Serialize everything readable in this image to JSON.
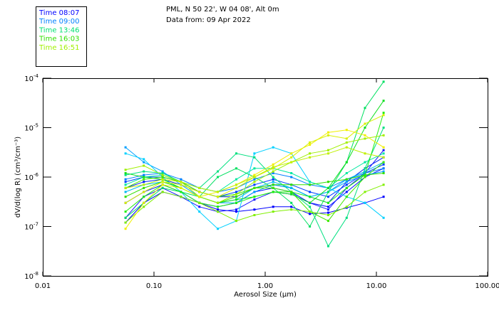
{
  "chart_data": {
    "type": "line",
    "title": "PML, N 50 22', W 04 08', Alt 0m",
    "subtitle": "Data from: 09 Apr 2022",
    "xlabel": "Aerosol Size (µm)",
    "ylabel": "dV/d(log R) (cm³/cm⁻³)",
    "xscale": "log",
    "yscale": "log",
    "xlim": [
      0.01,
      100
    ],
    "ylim": [
      1e-08,
      0.0001
    ],
    "xticks": [
      {
        "v": 0.01,
        "label": "0.01"
      },
      {
        "v": 0.1,
        "label": "0.10"
      },
      {
        "v": 1,
        "label": "1.00"
      },
      {
        "v": 10,
        "label": "10.00"
      },
      {
        "v": 100,
        "label": "100.00"
      }
    ],
    "yticks": [
      {
        "v": 0.0001,
        "base": "10",
        "exp": "-4"
      },
      {
        "v": 1e-05,
        "base": "10",
        "exp": "-5"
      },
      {
        "v": 1e-06,
        "base": "10",
        "exp": "-6"
      },
      {
        "v": 1e-07,
        "base": "10",
        "exp": "-7"
      },
      {
        "v": 1e-08,
        "base": "10",
        "exp": "-8"
      }
    ],
    "grid": false,
    "legend_position": "top-left",
    "legend": [
      {
        "label": "Time 08:07",
        "color": "#0000ff"
      },
      {
        "label": "Time 09:00",
        "color": "#0080ff"
      },
      {
        "label": "Time 13:46",
        "color": "#00e070"
      },
      {
        "label": "Time 16:03",
        "color": "#30e000"
      },
      {
        "label": "Time 16:51",
        "color": "#a0f000"
      }
    ],
    "x": [
      0.0555,
      0.081,
      0.1196,
      0.175,
      0.256,
      0.375,
      0.55,
      0.8,
      1.18,
      1.72,
      2.52,
      3.69,
      5.4,
      7.9,
      11.6
    ],
    "series": [
      {
        "name": "s1",
        "color": "#0000ff",
        "values": [
          1.2e-07,
          3e-07,
          5e-07,
          4e-07,
          3e-07,
          2.2e-07,
          2e-07,
          2.2e-07,
          2.5e-07,
          2.5e-07,
          1.8e-07,
          1.9e-07,
          2.4e-07,
          3e-07,
          4e-07
        ]
      },
      {
        "name": "s2",
        "color": "#0010ff",
        "values": [
          3e-07,
          5e-07,
          7e-07,
          5e-07,
          3e-07,
          2.5e-07,
          3e-07,
          5e-07,
          6e-07,
          5e-07,
          3e-07,
          2.5e-07,
          5e-07,
          1e-06,
          1.5e-06
        ]
      },
      {
        "name": "s3",
        "color": "#0020f0",
        "values": [
          6e-07,
          8e-07,
          9e-07,
          7e-07,
          5e-07,
          4e-07,
          4e-07,
          6e-07,
          7e-07,
          6e-07,
          4e-07,
          3e-07,
          8e-07,
          1.5e-06,
          2.5e-06
        ]
      },
      {
        "name": "s4",
        "color": "#1818ff",
        "values": [
          1.5e-07,
          4e-07,
          6e-07,
          4e-07,
          2.5e-07,
          2e-07,
          2.2e-07,
          3.5e-07,
          5e-07,
          4.5e-07,
          3e-07,
          2.2e-07,
          6e-07,
          1.2e-06,
          3.5e-06
        ]
      },
      {
        "name": "s5",
        "color": "#0040ff",
        "values": [
          8e-07,
          1e-06,
          1e-06,
          8e-07,
          5e-07,
          4e-07,
          5e-07,
          7e-07,
          9e-07,
          7e-07,
          5e-07,
          4e-07,
          7e-07,
          1.2e-06,
          1.8e-06
        ]
      },
      {
        "name": "s6",
        "color": "#0080ff",
        "values": [
          9e-07,
          1.1e-06,
          1.2e-06,
          9e-07,
          6e-07,
          5e-07,
          6e-07,
          9e-07,
          1.2e-06,
          1e-06,
          7e-07,
          6e-07,
          9e-07,
          1.2e-06,
          1.5e-06
        ]
      },
      {
        "name": "s7",
        "color": "#00a0ff",
        "values": [
          4e-06,
          2e-06,
          1.3e-06,
          7e-07,
          4e-07,
          3e-07,
          3e-07,
          5e-07,
          7e-07,
          6e-07,
          4e-07,
          5e-07,
          8e-07,
          1.1e-06,
          1.3e-06
        ]
      },
      {
        "name": "s8",
        "color": "#00d0ff",
        "values": [
          3e-06,
          2.3e-06,
          1e-06,
          5e-07,
          2e-07,
          9e-08,
          1.3e-07,
          3e-06,
          4e-06,
          3e-06,
          8e-07,
          6e-07,
          4e-07,
          3e-07,
          1.5e-07
        ]
      },
      {
        "name": "s9",
        "color": "#00b8f0",
        "values": [
          5e-07,
          7e-07,
          8e-07,
          6e-07,
          4e-07,
          3e-07,
          3.5e-07,
          6e-07,
          8e-07,
          6e-07,
          4e-07,
          5e-07,
          9e-07,
          1.3e-06,
          2e-06
        ]
      },
      {
        "name": "s10",
        "color": "#00e080",
        "values": [
          1.1e-06,
          1.3e-06,
          1.2e-06,
          8e-07,
          6e-07,
          1.3e-06,
          3e-06,
          2.5e-06,
          1e-06,
          5e-07,
          2.5e-07,
          4e-08,
          1.5e-07,
          1.5e-06,
          1e-05
        ]
      },
      {
        "name": "s11",
        "color": "#00e8a0",
        "values": [
          7e-07,
          1e-06,
          1.1e-06,
          8e-07,
          6e-07,
          5e-07,
          9e-07,
          1.5e-06,
          1.5e-06,
          1.2e-06,
          8e-07,
          6e-07,
          1.2e-06,
          2e-06,
          3e-06
        ]
      },
      {
        "name": "s12",
        "color": "#00e060",
        "values": [
          1.5e-07,
          3e-07,
          6e-07,
          5e-07,
          4e-07,
          1e-06,
          1.5e-06,
          1e-06,
          6e-07,
          3e-07,
          1e-07,
          5e-07,
          2e-06,
          2.5e-05,
          8.5e-05
        ]
      },
      {
        "name": "s13",
        "color": "#10e020",
        "values": [
          1.2e-06,
          1e-06,
          9e-07,
          6e-07,
          4e-07,
          3e-07,
          3.5e-07,
          4e-07,
          5e-07,
          4.5e-07,
          3e-07,
          6e-07,
          2e-06,
          1e-05,
          3.5e-05
        ]
      },
      {
        "name": "s14",
        "color": "#30e000",
        "values": [
          4e-07,
          6e-07,
          8e-07,
          6e-07,
          4e-07,
          3e-07,
          4e-07,
          6e-07,
          7e-07,
          7e-07,
          7e-07,
          8e-07,
          9e-07,
          1.1e-06,
          1.2e-06
        ]
      },
      {
        "name": "s15",
        "color": "#20f010",
        "values": [
          2e-07,
          4e-07,
          7e-07,
          5e-07,
          3e-07,
          2.5e-07,
          3e-07,
          4e-07,
          5e-07,
          5e-07,
          4e-07,
          3e-07,
          6e-07,
          1.1e-06,
          2e-05
        ]
      },
      {
        "name": "s16",
        "color": "#40e800",
        "values": [
          6e-07,
          9e-07,
          1e-06,
          8e-07,
          5e-07,
          4e-07,
          4.5e-07,
          6e-07,
          6e-07,
          5e-07,
          2e-07,
          1.3e-07,
          4e-07,
          1e-06,
          2e-06
        ]
      },
      {
        "name": "s17",
        "color": "#a0f000",
        "values": [
          1.4e-06,
          1.7e-06,
          1.1e-06,
          8e-07,
          4e-07,
          3e-07,
          4.5e-07,
          8e-07,
          1.3e-06,
          2e-06,
          3e-06,
          3.5e-06,
          5e-06,
          6e-06,
          7e-06
        ]
      },
      {
        "name": "s18",
        "color": "#80f000",
        "values": [
          1.2e-07,
          2.5e-07,
          5e-07,
          4e-07,
          3e-07,
          2e-07,
          1.3e-07,
          1.7e-07,
          2e-07,
          2.2e-07,
          2e-07,
          1.7e-07,
          2.5e-07,
          5e-07,
          7e-07
        ]
      },
      {
        "name": "s19",
        "color": "#f0f000",
        "values": [
          9e-08,
          3e-07,
          7e-07,
          6e-07,
          4e-07,
          5e-07,
          7e-07,
          1.1e-06,
          1.8e-06,
          3e-06,
          4.5e-06,
          8e-06,
          9e-06,
          7e-06,
          4e-06
        ]
      },
      {
        "name": "s20",
        "color": "#d8f000",
        "values": [
          3e-07,
          5e-07,
          8e-07,
          7e-07,
          5e-07,
          4e-07,
          6e-07,
          1e-06,
          1.5e-06,
          2.5e-06,
          5e-06,
          7e-06,
          6e-06,
          1.2e-05,
          1.8e-05
        ]
      },
      {
        "name": "s21",
        "color": "#c0f000",
        "values": [
          6e-07,
          7e-07,
          9e-07,
          8e-07,
          6e-07,
          5e-07,
          7e-07,
          1e-06,
          1.6e-06,
          2e-06,
          2.5e-06,
          3e-06,
          4e-06,
          3e-06,
          2.5e-06
        ]
      }
    ]
  }
}
